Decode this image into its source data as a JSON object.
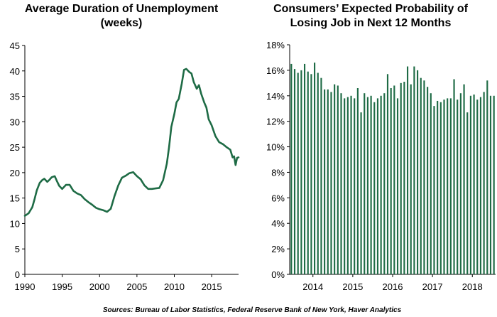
{
  "colors": {
    "series": "#1e6b45",
    "axis": "#000000",
    "background": "#ffffff"
  },
  "source_note": "Sources: Bureau of Labor Statistics, Federal Reserve Bank of New York, Haver Analytics",
  "chart_data": [
    {
      "type": "line",
      "title_lines": [
        "Average Duration of Unemployment",
        "(weeks)"
      ],
      "xlabel": "",
      "ylabel": "",
      "xlim": [
        1990,
        2018.6
      ],
      "ylim": [
        0,
        45
      ],
      "yticks": [
        0,
        5,
        10,
        15,
        20,
        25,
        30,
        35,
        40,
        45
      ],
      "xticks": [
        1990,
        1995,
        2000,
        2005,
        2010,
        2015
      ],
      "grid": false,
      "series": [
        {
          "x": [
            1990.0,
            1990.5,
            1991.0,
            1991.3,
            1991.6,
            1992.0,
            1992.3,
            1992.6,
            1993.0,
            1993.3,
            1993.6,
            1994.0,
            1994.3,
            1994.6,
            1995.0,
            1995.5,
            1996.0,
            1996.5,
            1997.0,
            1997.5,
            1998.0,
            1998.5,
            1999.0,
            1999.5,
            2000.0,
            2000.5,
            2001.0,
            2001.5,
            2002.0,
            2002.5,
            2003.0,
            2003.5,
            2004.0,
            2004.5,
            2005.0,
            2005.5,
            2006.0,
            2006.5,
            2007.0,
            2007.5,
            2008.0,
            2008.5,
            2009.0,
            2009.3,
            2009.6,
            2010.0,
            2010.3,
            2010.6,
            2011.0,
            2011.3,
            2011.6,
            2012.0,
            2012.3,
            2012.6,
            2013.0,
            2013.3,
            2013.6,
            2014.0,
            2014.3,
            2014.6,
            2015.0,
            2015.5,
            2016.0,
            2016.5,
            2017.0,
            2017.5,
            2017.8,
            2018.0,
            2018.2,
            2018.4,
            2018.6
          ],
          "values": [
            11.5,
            12.0,
            13.2,
            14.8,
            16.5,
            18.0,
            18.5,
            18.8,
            18.2,
            18.6,
            19.1,
            19.3,
            18.3,
            17.4,
            16.8,
            17.6,
            17.6,
            16.4,
            15.9,
            15.6,
            14.8,
            14.2,
            13.7,
            13.1,
            12.8,
            12.6,
            12.3,
            12.9,
            15.4,
            17.5,
            19.0,
            19.4,
            19.9,
            20.1,
            19.3,
            18.7,
            17.5,
            16.8,
            16.8,
            16.9,
            17.0,
            18.5,
            21.8,
            25.0,
            29.0,
            31.5,
            33.8,
            34.5,
            37.5,
            40.2,
            40.4,
            39.8,
            39.5,
            37.8,
            36.5,
            37.2,
            35.5,
            33.8,
            32.8,
            30.5,
            29.3,
            27.2,
            26.0,
            25.6,
            25.0,
            24.5,
            23.0,
            23.2,
            21.5,
            22.9,
            23.0
          ]
        }
      ]
    },
    {
      "type": "bar",
      "title_lines": [
        "Consumers’ Expected Probability of",
        "Losing Job in Next 12 Months"
      ],
      "xlabel": "",
      "ylabel": "",
      "ylim": [
        0,
        18
      ],
      "yticks": [
        "0%",
        "2%",
        "4%",
        "6%",
        "8%",
        "10%",
        "12%",
        "14%",
        "16%",
        "18%"
      ],
      "yticks_values": [
        0,
        2,
        4,
        6,
        8,
        10,
        12,
        14,
        16,
        18
      ],
      "xticks": [
        "2014",
        "2015",
        "2016",
        "2017",
        "2018"
      ],
      "first_period": "2013-06",
      "grid": false,
      "values": [
        16.5,
        16.1,
        15.8,
        16.0,
        16.5,
        15.9,
        15.7,
        16.6,
        15.8,
        15.4,
        14.5,
        14.5,
        14.3,
        14.9,
        14.8,
        14.2,
        13.8,
        13.9,
        14.0,
        13.8,
        14.6,
        12.7,
        14.2,
        13.9,
        14.0,
        13.5,
        13.8,
        14.0,
        14.2,
        15.7,
        14.6,
        14.8,
        13.8,
        15.0,
        15.1,
        16.3,
        14.9,
        16.3,
        16.0,
        15.4,
        15.2,
        14.7,
        14.2,
        13.2,
        13.6,
        13.5,
        13.7,
        13.8,
        13.8,
        15.3,
        13.7,
        14.2,
        14.9,
        12.7,
        14.0,
        14.1,
        13.7,
        13.9,
        14.3,
        15.2,
        14.0,
        14.0
      ]
    }
  ]
}
